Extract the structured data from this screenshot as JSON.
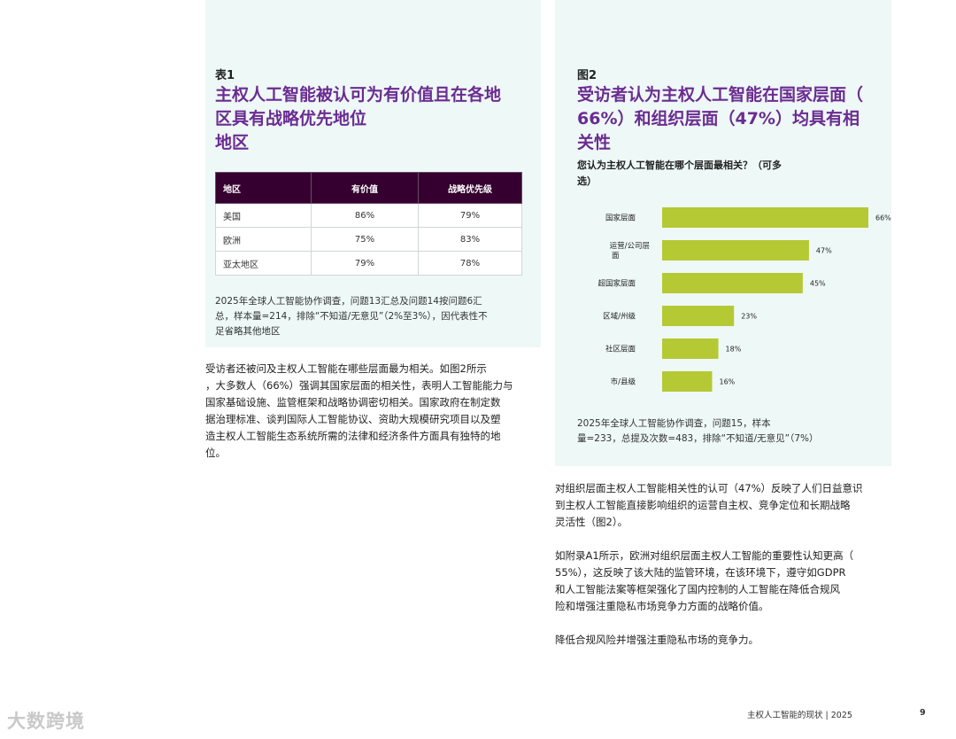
{
  "table1": {
    "label": "表1",
    "title_lines": [
      "主权人工智能被认可为有价值且在各地",
      "区具有战略优先地位",
      "地区"
    ],
    "headers": [
      "地区",
      "有价值",
      "战略优先级"
    ],
    "rows": [
      [
        "美国",
        "86%",
        "79%"
      ],
      [
        "欧洲",
        "75%",
        "83%"
      ],
      [
        "亚太地区",
        "79%",
        "78%"
      ]
    ],
    "note_lines": [
      "2025年全球人工智能协作调查，问题13汇总及问题14按问题6汇",
      "总，样本量=214，排除“不知道/无意见”（2%至3%），因代表性不",
      "足省略其他地区"
    ]
  },
  "left_body_lines": [
    "受访者还被问及主权人工智能在哪些层面最为相关。如图2所示",
    "，大多数人（66%）强调其国家层面的相关性，表明人工智能能力与",
    "国家基础设施、监管框架和战略协调密切相关。国家政府在制定数",
    "据治理标准、谈判国际人工智能协议、资助大规模研究项目以及塑",
    "造主权人工智能生态系统所需的法律和经济条件方面具有独特的地",
    "位。"
  ],
  "figure2": {
    "label": "图2",
    "title_lines": [
      "受访者认为主权人工智能在国家层面（",
      "66%）和组织层面（47%）均具有相",
      "关性"
    ],
    "question_lines": [
      "您认为主权人工智能在哪个层面最相关？（可多",
      "选）"
    ],
    "note_lines": [
      "2025年全球人工智能协作调查，问题15，样本",
      "量=233，总提及次数=483，排除“不知道/无意见”（7%）"
    ]
  },
  "chart_data": {
    "type": "bar",
    "orientation": "horizontal",
    "categories": [
      "国家层面",
      "运营/公司层面",
      "超国家层面",
      "区域/州级",
      "社区层面",
      "市/县级"
    ],
    "values": [
      66,
      47,
      45,
      23,
      18,
      16
    ],
    "value_labels": [
      "66%",
      "47%",
      "45%",
      "23%",
      "18%",
      "16%"
    ],
    "bar_color": "#b5c935"
  },
  "right_body": {
    "p1": [
      "对组织层面主权人工智能相关性的认可（47%）反映了人们日益意识",
      "到主权人工智能直接影响组织的运营自主权、竞争定位和长期战略",
      "灵活性（图2）。"
    ],
    "p2": [
      "如附录A1所示，欧洲对组织层面主权人工智能的重要性认知更高（",
      "55%），这反映了该大陆的监管环境，在该环境下，遵守如GDPR",
      "和人工智能法案等框架强化了国内控制的人工智能在降低合规风",
      "险和增强注重隐私市场竞争力方面的战略价值。"
    ],
    "p3": [
      "降低合规风险并增强注重隐私市场的竞争力。"
    ]
  },
  "footer": {
    "text": "主权人工智能的现状  |  2025",
    "page": "9"
  },
  "watermark": "大数跨境"
}
